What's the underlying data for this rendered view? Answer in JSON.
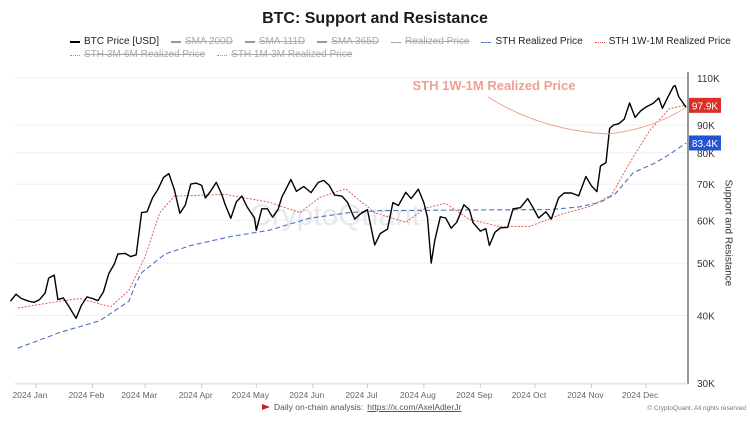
{
  "chart_data": {
    "type": "line",
    "title": "BTC: Support and Resistance",
    "ylabel": "Support and Resistance",
    "y_scale": "log",
    "ylim": [
      30000,
      110000
    ],
    "y_ticks": [
      {
        "value": 30000,
        "label": "30K"
      },
      {
        "value": 40000,
        "label": "40K"
      },
      {
        "value": 50000,
        "label": "50K"
      },
      {
        "value": 60000,
        "label": "60K"
      },
      {
        "value": 70000,
        "label": "70K"
      },
      {
        "value": 80000,
        "label": "80K"
      },
      {
        "value": 90000,
        "label": "90K"
      },
      {
        "value": 110000,
        "label": "110K"
      }
    ],
    "x_ticks": [
      {
        "date": "2024-01-01",
        "label": "2024 Jan"
      },
      {
        "date": "2024-02-01",
        "label": "2024 Feb"
      },
      {
        "date": "2024-03-01",
        "label": "2024 Mar"
      },
      {
        "date": "2024-04-01",
        "label": "2024 Apr"
      },
      {
        "date": "2024-05-01",
        "label": "2024 May"
      },
      {
        "date": "2024-06-01",
        "label": "2024 Jun"
      },
      {
        "date": "2024-07-01",
        "label": "2024 Jul"
      },
      {
        "date": "2024-08-01",
        "label": "2024 Aug"
      },
      {
        "date": "2024-09-01",
        "label": "2024 Sep"
      },
      {
        "date": "2024-10-01",
        "label": "2024 Oct"
      },
      {
        "date": "2024-11-01",
        "label": "2024 Nov"
      },
      {
        "date": "2024-12-01",
        "label": "2024 Dec"
      }
    ],
    "grid": true,
    "legend_position": "top",
    "legend": [
      {
        "label": "BTC Price [USD]",
        "color": "#000000",
        "style": "solid",
        "hidden": false
      },
      {
        "label": "SMA 200D",
        "color": "#999999",
        "style": "solid",
        "hidden": true
      },
      {
        "label": "SMA 111D",
        "color": "#999999",
        "style": "solid",
        "hidden": true
      },
      {
        "label": "SMA 365D",
        "color": "#999999",
        "style": "solid",
        "hidden": true
      },
      {
        "label": "Realized Price",
        "color": "#999999",
        "style": "dashed",
        "hidden": true
      },
      {
        "label": "STH Realized Price",
        "color": "#4a72c8",
        "style": "dashed",
        "hidden": false
      },
      {
        "label": "STH 1W-1M Realized Price",
        "color": "#d9534f",
        "style": "dotted",
        "hidden": false
      },
      {
        "label": "STH 3M-6M Realized Price",
        "color": "#999999",
        "style": "dotted",
        "hidden": true
      },
      {
        "label": "STH 1M-3M Realized Price",
        "color": "#999999",
        "style": "dotted",
        "hidden": true
      }
    ],
    "series": [
      {
        "name": "BTC Price [USD]",
        "color": "#000000",
        "points": [
          [
            "2023-12-18",
            42500
          ],
          [
            "2023-12-21",
            43800
          ],
          [
            "2023-12-24",
            43000
          ],
          [
            "2023-12-28",
            42500
          ],
          [
            "2023-12-31",
            42300
          ],
          [
            "2024-01-03",
            42800
          ],
          [
            "2024-01-06",
            44000
          ],
          [
            "2024-01-08",
            46900
          ],
          [
            "2024-01-11",
            47500
          ],
          [
            "2024-01-13",
            42800
          ],
          [
            "2024-01-16",
            43100
          ],
          [
            "2024-01-19",
            41600
          ],
          [
            "2024-01-23",
            39500
          ],
          [
            "2024-01-26",
            41800
          ],
          [
            "2024-01-29",
            43300
          ],
          [
            "2024-02-01",
            43000
          ],
          [
            "2024-02-04",
            42600
          ],
          [
            "2024-02-07",
            44200
          ],
          [
            "2024-02-10",
            47800
          ],
          [
            "2024-02-13",
            49800
          ],
          [
            "2024-02-15",
            52000
          ],
          [
            "2024-02-19",
            52100
          ],
          [
            "2024-02-22",
            51400
          ],
          [
            "2024-02-25",
            51800
          ],
          [
            "2024-02-28",
            62000
          ],
          [
            "2024-03-02",
            62200
          ],
          [
            "2024-03-05",
            66000
          ],
          [
            "2024-03-08",
            68500
          ],
          [
            "2024-03-11",
            72000
          ],
          [
            "2024-03-14",
            73200
          ],
          [
            "2024-03-17",
            68300
          ],
          [
            "2024-03-20",
            61800
          ],
          [
            "2024-03-23",
            64000
          ],
          [
            "2024-03-26",
            70000
          ],
          [
            "2024-03-29",
            70300
          ],
          [
            "2024-04-01",
            69600
          ],
          [
            "2024-04-03",
            66000
          ],
          [
            "2024-04-06",
            68000
          ],
          [
            "2024-04-09",
            70500
          ],
          [
            "2024-04-12",
            67000
          ],
          [
            "2024-04-14",
            64000
          ],
          [
            "2024-04-17",
            60500
          ],
          [
            "2024-04-20",
            64900
          ],
          [
            "2024-04-23",
            66500
          ],
          [
            "2024-04-26",
            63500
          ],
          [
            "2024-04-30",
            60600
          ],
          [
            "2024-05-01",
            57500
          ],
          [
            "2024-05-04",
            63000
          ],
          [
            "2024-05-07",
            63000
          ],
          [
            "2024-05-10",
            60800
          ],
          [
            "2024-05-13",
            62900
          ],
          [
            "2024-05-15",
            66200
          ],
          [
            "2024-05-20",
            71400
          ],
          [
            "2024-05-23",
            67900
          ],
          [
            "2024-05-27",
            69300
          ],
          [
            "2024-05-31",
            67500
          ],
          [
            "2024-06-04",
            70500
          ],
          [
            "2024-06-07",
            71100
          ],
          [
            "2024-06-10",
            69600
          ],
          [
            "2024-06-13",
            66800
          ],
          [
            "2024-06-17",
            66500
          ],
          [
            "2024-06-20",
            64800
          ],
          [
            "2024-06-24",
            60300
          ],
          [
            "2024-06-27",
            61600
          ],
          [
            "2024-07-01",
            62800
          ],
          [
            "2024-07-05",
            54000
          ],
          [
            "2024-07-08",
            56700
          ],
          [
            "2024-07-12",
            57800
          ],
          [
            "2024-07-15",
            64700
          ],
          [
            "2024-07-18",
            63900
          ],
          [
            "2024-07-22",
            67600
          ],
          [
            "2024-07-25",
            65800
          ],
          [
            "2024-07-29",
            68500
          ],
          [
            "2024-08-01",
            64600
          ],
          [
            "2024-08-03",
            60700
          ],
          [
            "2024-08-05",
            50000
          ],
          [
            "2024-08-07",
            55100
          ],
          [
            "2024-08-10",
            60900
          ],
          [
            "2024-08-13",
            60600
          ],
          [
            "2024-08-16",
            58000
          ],
          [
            "2024-08-19",
            59500
          ],
          [
            "2024-08-23",
            64100
          ],
          [
            "2024-08-26",
            62800
          ],
          [
            "2024-08-28",
            59400
          ],
          [
            "2024-09-01",
            57300
          ],
          [
            "2024-09-04",
            57900
          ],
          [
            "2024-09-06",
            53900
          ],
          [
            "2024-09-09",
            57000
          ],
          [
            "2024-09-12",
            58100
          ],
          [
            "2024-09-16",
            58200
          ],
          [
            "2024-09-19",
            63000
          ],
          [
            "2024-09-23",
            63300
          ],
          [
            "2024-09-27",
            65800
          ],
          [
            "2024-09-30",
            63300
          ],
          [
            "2024-10-03",
            60600
          ],
          [
            "2024-10-07",
            62200
          ],
          [
            "2024-10-10",
            60300
          ],
          [
            "2024-10-14",
            66000
          ],
          [
            "2024-10-17",
            67400
          ],
          [
            "2024-10-21",
            67400
          ],
          [
            "2024-10-25",
            66600
          ],
          [
            "2024-10-29",
            72300
          ],
          [
            "2024-11-01",
            69500
          ],
          [
            "2024-11-04",
            67800
          ],
          [
            "2024-11-06",
            75600
          ],
          [
            "2024-11-09",
            76700
          ],
          [
            "2024-11-11",
            88700
          ],
          [
            "2024-11-13",
            90000
          ],
          [
            "2024-11-16",
            90500
          ],
          [
            "2024-11-19",
            92300
          ],
          [
            "2024-11-22",
            98900
          ],
          [
            "2024-11-25",
            93000
          ],
          [
            "2024-11-28",
            95600
          ],
          [
            "2024-12-01",
            97200
          ],
          [
            "2024-12-05",
            98800
          ],
          [
            "2024-12-08",
            101000
          ],
          [
            "2024-12-10",
            96700
          ],
          [
            "2024-12-13",
            101400
          ],
          [
            "2024-12-16",
            106100
          ],
          [
            "2024-12-17",
            106500
          ],
          [
            "2024-12-19",
            101500
          ],
          [
            "2024-12-21",
            99300
          ],
          [
            "2024-12-23",
            97000
          ]
        ]
      },
      {
        "name": "STH Realized Price",
        "color": "#4a72c8",
        "last_label": "83.4K",
        "points": [
          [
            "2023-12-22",
            34800
          ],
          [
            "2024-01-14",
            37200
          ],
          [
            "2024-02-05",
            39100
          ],
          [
            "2024-02-21",
            42500
          ],
          [
            "2024-02-25",
            46000
          ],
          [
            "2024-02-28",
            48000
          ],
          [
            "2024-03-12",
            52000
          ],
          [
            "2024-03-26",
            53900
          ],
          [
            "2024-04-17",
            56000
          ],
          [
            "2024-05-08",
            57500
          ],
          [
            "2024-05-30",
            60500
          ],
          [
            "2024-06-21",
            62000
          ],
          [
            "2024-07-08",
            62500
          ],
          [
            "2024-08-21",
            62700
          ],
          [
            "2024-10-09",
            62800
          ],
          [
            "2024-10-25",
            63500
          ],
          [
            "2024-11-06",
            64800
          ],
          [
            "2024-11-14",
            67100
          ],
          [
            "2024-11-24",
            73500
          ],
          [
            "2024-12-06",
            76600
          ],
          [
            "2024-12-14",
            79500
          ],
          [
            "2024-12-23",
            83400
          ]
        ]
      },
      {
        "name": "STH 1W-1M Realized Price",
        "color": "#d9534f",
        "last_label": "97.9K",
        "points": [
          [
            "2023-12-22",
            41300
          ],
          [
            "2024-01-14",
            42500
          ],
          [
            "2024-01-25",
            43000
          ],
          [
            "2024-02-11",
            41500
          ],
          [
            "2024-02-21",
            44500
          ],
          [
            "2024-03-01",
            51500
          ],
          [
            "2024-03-09",
            62000
          ],
          [
            "2024-03-17",
            66500
          ],
          [
            "2024-04-14",
            67000
          ],
          [
            "2024-05-08",
            64800
          ],
          [
            "2024-05-25",
            62000
          ],
          [
            "2024-06-05",
            66200
          ],
          [
            "2024-06-19",
            68600
          ],
          [
            "2024-06-25",
            66000
          ],
          [
            "2024-07-05",
            62000
          ],
          [
            "2024-07-22",
            59500
          ],
          [
            "2024-08-02",
            63200
          ],
          [
            "2024-08-13",
            64500
          ],
          [
            "2024-08-26",
            60200
          ],
          [
            "2024-09-12",
            58400
          ],
          [
            "2024-09-28",
            58400
          ],
          [
            "2024-10-15",
            61500
          ],
          [
            "2024-10-31",
            63600
          ],
          [
            "2024-11-12",
            66800
          ],
          [
            "2024-11-22",
            76600
          ],
          [
            "2024-12-03",
            88000
          ],
          [
            "2024-12-14",
            96600
          ],
          [
            "2024-12-23",
            97900
          ]
        ]
      }
    ],
    "annotation": {
      "text": "STH 1W-1M Realized Price",
      "color": "#f0a08e"
    },
    "watermark": "CryptoQuant"
  },
  "footer": {
    "prefix": "Daily on-chain analysis:",
    "link": "https://x.com/AxelAdlerJr",
    "copyright": "© CryptoQuant. All rights reserved"
  }
}
